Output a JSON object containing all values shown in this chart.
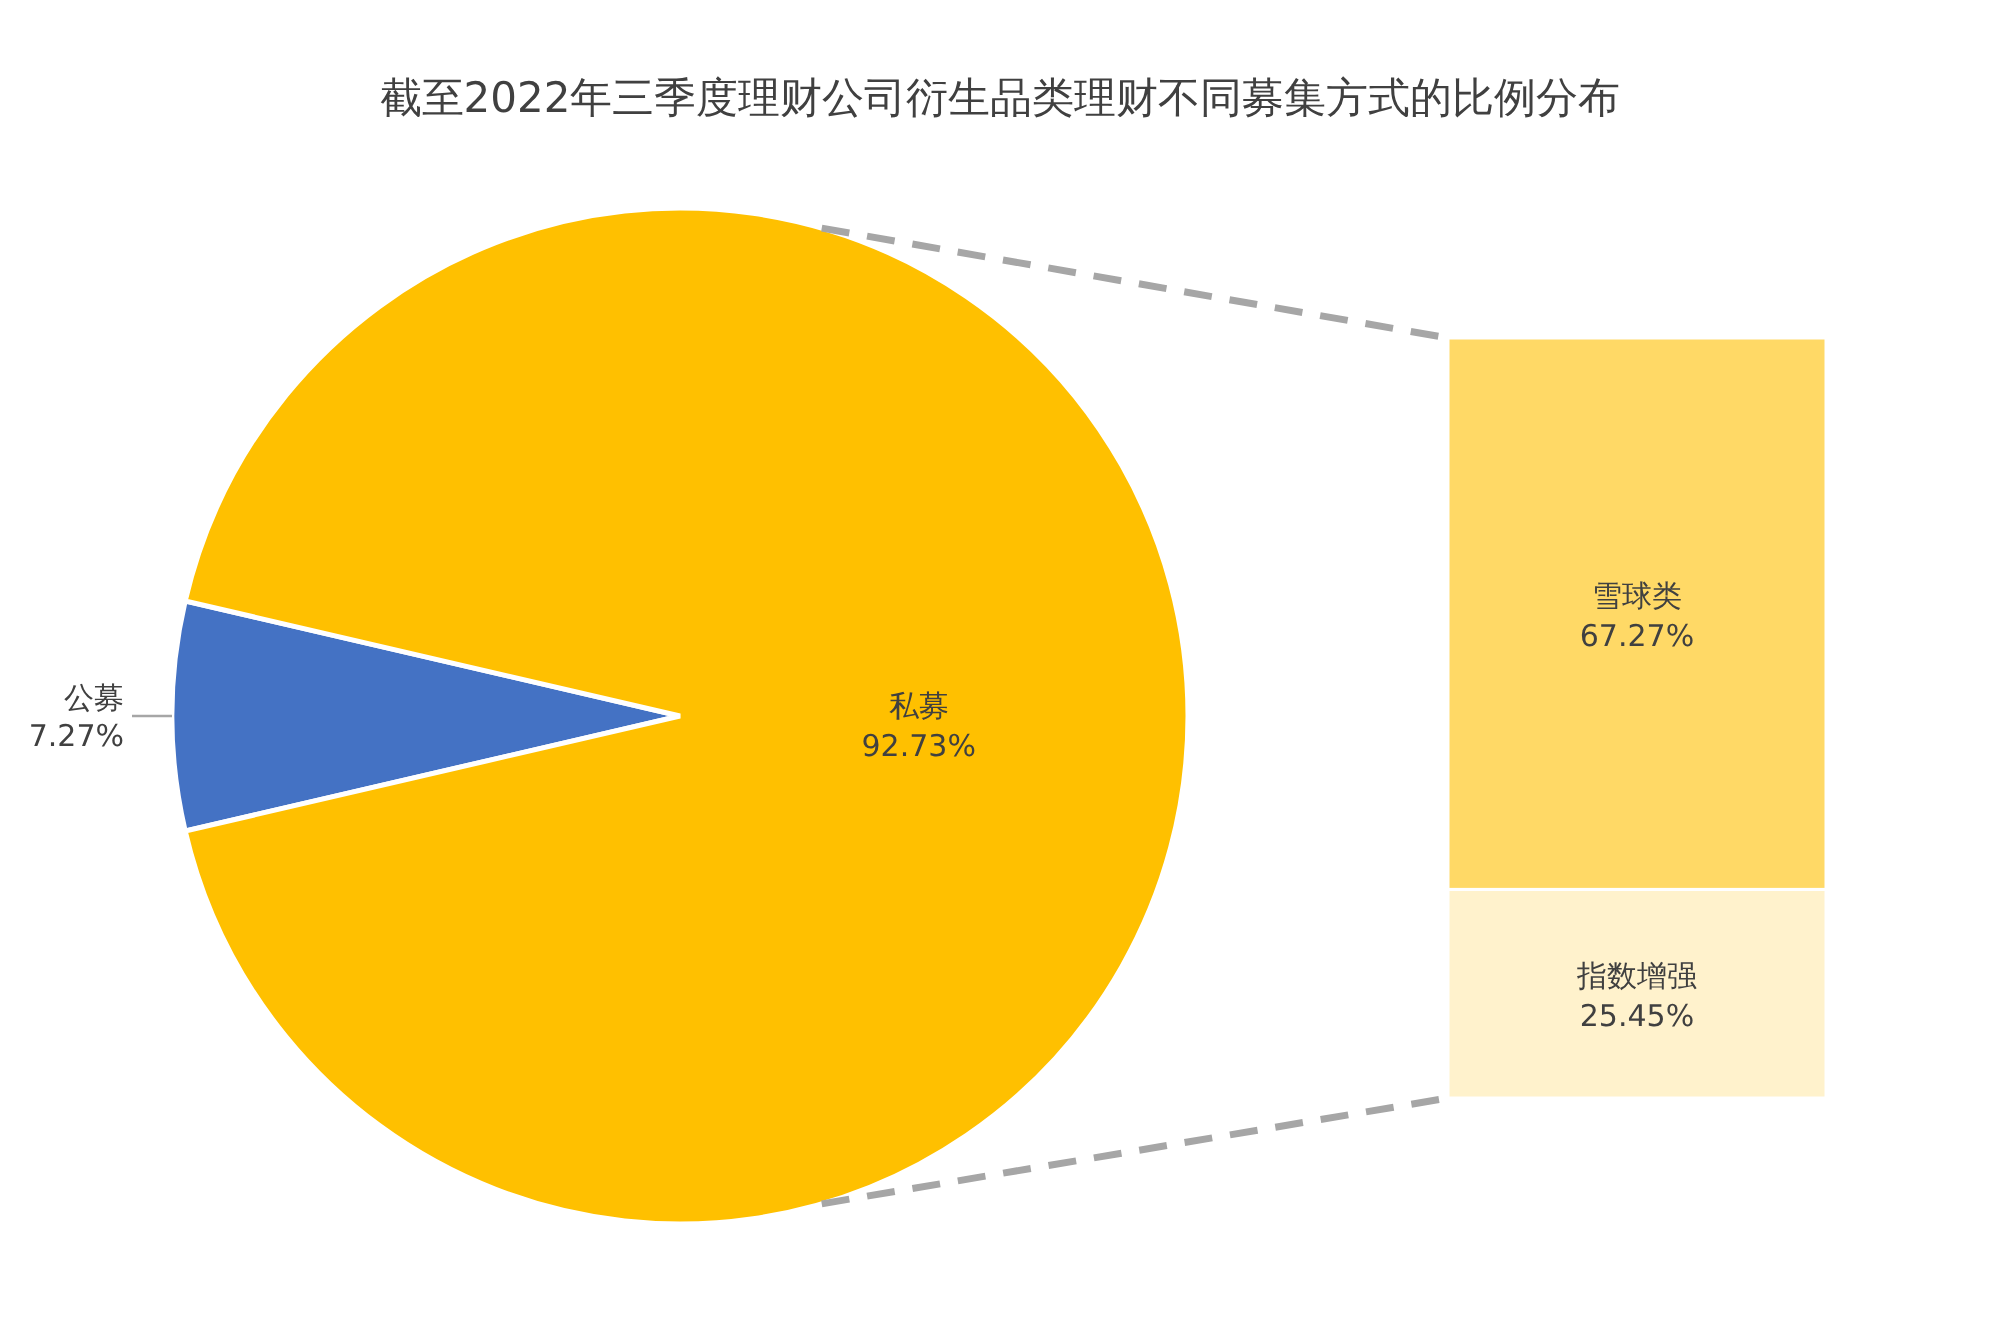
{
  "chart_data": [
    {
      "type": "pie",
      "title": "截至2022年三季度理财公司衍生品类理财不同募集方式的比例分布",
      "categories": [
        "公募",
        "私募"
      ],
      "values": [
        7.27,
        92.73
      ],
      "colors": [
        "#4472c4",
        "#ffc000"
      ],
      "value_labels": [
        "7.27%",
        "92.73%"
      ]
    },
    {
      "type": "bar",
      "stacked": true,
      "categories": [
        null
      ],
      "series": [
        {
          "name": "指数增强",
          "color": "#fff2cc",
          "values": [
            25.45
          ],
          "value_labels": [
            "25.45%"
          ]
        },
        {
          "name": "雪球类",
          "color": "#ffd966",
          "values": [
            67.27
          ],
          "value_labels": [
            "67.27%"
          ]
        }
      ]
    }
  ]
}
